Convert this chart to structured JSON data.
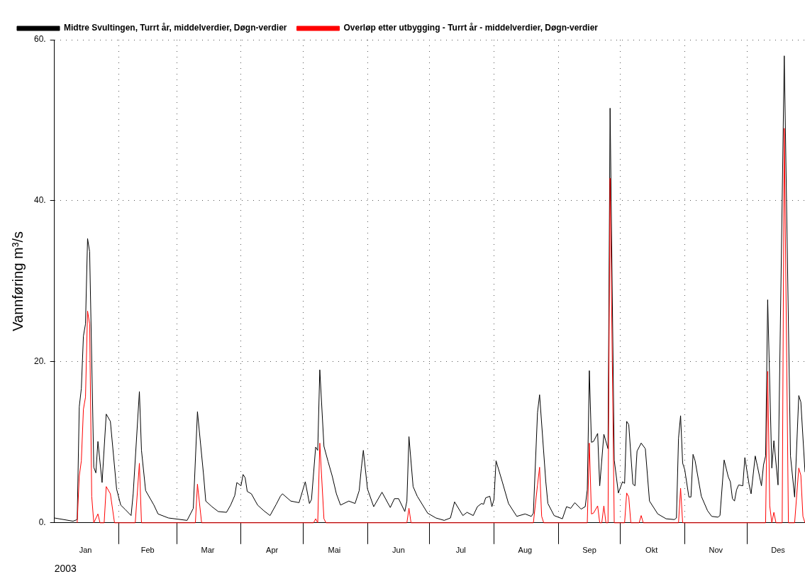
{
  "chart_data": {
    "type": "line",
    "ylabel": "Vannføring m³/s",
    "annotations": [
      "2003"
    ],
    "xlim": [
      "2003-01-01",
      "2003-12-29"
    ],
    "xticks": [
      {
        "value": "2003-02-01",
        "label": null
      },
      {
        "value": "2003-03-01",
        "label": null
      },
      {
        "value": "2003-04-01",
        "label": null
      },
      {
        "value": "2003-05-01",
        "label": null
      },
      {
        "value": "2003-06-01",
        "label": null
      },
      {
        "value": "2003-07-01",
        "label": null
      },
      {
        "value": "2003-08-01",
        "label": null
      },
      {
        "value": "2003-09-01",
        "label": null
      },
      {
        "value": "2003-10-01",
        "label": null
      },
      {
        "value": "2003-11-01",
        "label": null
      },
      {
        "value": "2003-12-01",
        "label": null
      },
      {
        "value": "2003-01-16",
        "label": "Jan"
      },
      {
        "value": "2003-02-15",
        "label": "Feb"
      },
      {
        "value": "2003-03-16",
        "label": "Mar"
      },
      {
        "value": "2003-04-16",
        "label": "Apr"
      },
      {
        "value": "2003-05-16",
        "label": "Mai"
      },
      {
        "value": "2003-06-16",
        "label": "Jun"
      },
      {
        "value": "2003-07-16",
        "label": "Jul"
      },
      {
        "value": "2003-08-16",
        "label": "Aug"
      },
      {
        "value": "2003-09-16",
        "label": "Sep"
      },
      {
        "value": "2003-10-16",
        "label": "Okt"
      },
      {
        "value": "2003-11-16",
        "label": "Nov"
      },
      {
        "value": "2003-12-16",
        "label": "Des"
      }
    ],
    "ylim": [
      0,
      60
    ],
    "yticks": [
      {
        "value": 0,
        "label": "0."
      },
      {
        "value": 20,
        "label": "20."
      },
      {
        "value": 40,
        "label": "40."
      },
      {
        "value": 60,
        "label": "60."
      }
    ],
    "grid": true,
    "legend": "top left",
    "series": [
      {
        "name": "Midtre Svultingen, Turrt år, middelverdier, Døgn-verdier",
        "color": "#000000",
        "x": [
          "2003-01-01",
          "2003-01-10",
          "2003-01-12",
          "2003-01-13",
          "2003-01-14",
          "2003-01-15",
          "2003-01-16",
          "2003-01-17",
          "2003-01-18",
          "2003-01-20",
          "2003-01-21",
          "2003-01-22",
          "2003-01-24",
          "2003-01-26",
          "2003-01-28",
          "2003-01-31",
          "2003-02-02",
          "2003-02-04",
          "2003-02-07",
          "2003-02-08",
          "2003-02-11",
          "2003-02-12",
          "2003-02-14",
          "2003-02-18",
          "2003-02-20",
          "2003-02-25",
          "2003-03-06",
          "2003-03-08",
          "2003-03-09",
          "2003-03-11",
          "2003-03-14",
          "2003-03-15",
          "2003-03-18",
          "2003-03-21",
          "2003-03-25",
          "2003-03-27",
          "2003-03-29",
          "2003-03-30",
          "2003-04-01",
          "2003-04-02",
          "2003-04-03",
          "2003-04-04",
          "2003-04-06",
          "2003-04-09",
          "2003-04-12",
          "2003-04-15",
          "2003-04-18",
          "2003-04-20",
          "2003-04-21",
          "2003-04-25",
          "2003-04-29",
          "2003-05-02",
          "2003-05-04",
          "2003-05-05",
          "2003-05-07",
          "2003-05-08",
          "2003-05-09",
          "2003-05-11",
          "2003-05-13",
          "2003-05-15",
          "2003-05-17",
          "2003-05-19",
          "2003-05-23",
          "2003-05-26",
          "2003-05-28",
          "2003-05-29",
          "2003-05-30",
          "2003-06-01",
          "2003-06-04",
          "2003-06-08",
          "2003-06-12",
          "2003-06-14",
          "2003-06-16",
          "2003-06-19",
          "2003-06-20",
          "2003-06-21",
          "2003-06-23",
          "2003-06-25",
          "2003-06-30",
          "2003-07-04",
          "2003-07-08",
          "2003-07-11",
          "2003-07-13",
          "2003-07-17",
          "2003-07-19",
          "2003-07-22",
          "2003-07-24",
          "2003-07-26",
          "2003-07-27",
          "2003-07-28",
          "2003-07-30",
          "2003-07-31",
          "2003-08-01",
          "2003-08-02",
          "2003-08-05",
          "2003-08-08",
          "2003-08-12",
          "2003-08-16",
          "2003-08-19",
          "2003-08-20",
          "2003-08-22",
          "2003-08-23",
          "2003-08-26",
          "2003-08-27",
          "2003-08-30",
          "2003-09-03",
          "2003-09-05",
          "2003-09-07",
          "2003-09-09",
          "2003-09-12",
          "2003-09-14",
          "2003-09-15",
          "2003-09-16",
          "2003-09-17",
          "2003-09-18",
          "2003-09-20",
          "2003-09-21",
          "2003-09-23",
          "2003-09-25",
          "2003-09-26",
          "2003-09-28",
          "2003-09-30",
          "2003-10-02",
          "2003-10-03",
          "2003-10-04",
          "2003-10-05",
          "2003-10-07",
          "2003-10-08",
          "2003-10-09",
          "2003-10-11",
          "2003-10-13",
          "2003-10-15",
          "2003-10-19",
          "2003-10-23",
          "2003-10-27",
          "2003-10-28",
          "2003-10-29",
          "2003-10-30",
          "2003-10-31",
          "2003-11-01",
          "2003-11-03",
          "2003-11-04",
          "2003-11-05",
          "2003-11-06",
          "2003-11-09",
          "2003-11-12",
          "2003-11-14",
          "2003-11-17",
          "2003-11-18",
          "2003-11-20",
          "2003-11-22",
          "2003-11-23",
          "2003-11-24",
          "2003-11-25",
          "2003-11-26",
          "2003-11-27",
          "2003-11-29",
          "2003-11-30",
          "2003-12-02",
          "2003-12-03",
          "2003-12-05",
          "2003-12-06",
          "2003-12-08",
          "2003-12-09",
          "2003-12-10",
          "2003-12-11",
          "2003-12-13",
          "2003-12-14",
          "2003-12-16",
          "2003-12-19",
          "2003-12-22",
          "2003-12-24",
          "2003-12-26",
          "2003-12-27",
          "2003-12-29"
        ],
        "values": [
          0.6,
          0.2,
          0.4,
          14.4,
          16.7,
          23.2,
          24.7,
          35.3,
          33.7,
          6.9,
          6.2,
          10.1,
          5.0,
          13.5,
          12.6,
          4.2,
          2.2,
          1.7,
          0.9,
          3.6,
          16.3,
          9.0,
          4.0,
          2.2,
          1.1,
          0.6,
          0.3,
          1.3,
          1.8,
          13.8,
          5.8,
          2.7,
          2.0,
          1.4,
          1.3,
          2.2,
          3.4,
          5.0,
          4.6,
          6.0,
          5.6,
          3.9,
          3.6,
          2.2,
          1.5,
          0.9,
          2.3,
          3.3,
          3.6,
          2.7,
          2.5,
          5.1,
          2.4,
          2.9,
          9.4,
          9.0,
          19.0,
          9.5,
          7.6,
          5.8,
          3.6,
          2.2,
          2.7,
          2.4,
          4.0,
          6.7,
          9.0,
          4.2,
          2.0,
          3.8,
          1.9,
          3.0,
          3.0,
          1.4,
          2.7,
          10.7,
          4.5,
          3.3,
          1.2,
          0.6,
          0.3,
          0.6,
          2.6,
          0.9,
          1.3,
          0.9,
          2.0,
          2.4,
          2.3,
          3.1,
          3.3,
          2.0,
          2.9,
          7.7,
          5.1,
          2.4,
          0.8,
          1.1,
          0.8,
          1.2,
          13.7,
          15.9,
          5.1,
          2.4,
          0.9,
          0.5,
          2.0,
          1.8,
          2.5,
          1.7,
          2.0,
          4.1,
          18.9,
          10.0,
          10.1,
          11.1,
          4.6,
          11.0,
          9.2,
          51.5,
          7.8,
          3.7,
          5.1,
          4.9,
          12.6,
          12.2,
          4.8,
          4.6,
          8.9,
          9.9,
          9.2,
          2.7,
          1.1,
          0.5,
          0.4,
          0.6,
          10.5,
          13.3,
          7.4,
          6.6,
          3.2,
          3.2,
          8.5,
          7.7,
          3.3,
          1.5,
          0.8,
          0.7,
          0.9,
          7.8,
          5.7,
          5.1,
          3.0,
          2.7,
          4.1,
          4.7,
          4.6,
          8.1,
          4.8,
          3.6,
          8.3,
          7.1,
          4.6,
          7.2,
          8.3,
          27.7,
          6.8,
          10.2,
          4.7,
          58.0,
          8.3,
          3.2,
          15.8,
          15.0,
          6.3
        ]
      },
      {
        "name": "Overløp etter utbygging - Turrt år - middelverdier, Døgn-verdier",
        "color": "#ff0000",
        "x": [
          "2003-01-12",
          "2003-01-13",
          "2003-01-14",
          "2003-01-15",
          "2003-01-16",
          "2003-01-17",
          "2003-01-18",
          "2003-01-19",
          "2003-01-20",
          "2003-01-22",
          "2003-01-23",
          "2003-01-25",
          "2003-01-26",
          "2003-01-28",
          "2003-01-30",
          "2003-02-09",
          "2003-02-11",
          "2003-02-12",
          "2003-03-10",
          "2003-03-11",
          "2003-03-13",
          "2003-05-06",
          "2003-05-07",
          "2003-05-08",
          "2003-05-09",
          "2003-05-11",
          "2003-05-12",
          "2003-06-20",
          "2003-06-21",
          "2003-06-22",
          "2003-08-20",
          "2003-08-22",
          "2003-08-23",
          "2003-08-24",
          "2003-08-25",
          "2003-09-15",
          "2003-09-16",
          "2003-09-17",
          "2003-09-18",
          "2003-09-20",
          "2003-09-21",
          "2003-09-22",
          "2003-09-23",
          "2003-09-24",
          "2003-09-25",
          "2003-09-26",
          "2003-09-28",
          "2003-10-03",
          "2003-10-04",
          "2003-10-05",
          "2003-10-06",
          "2003-10-10",
          "2003-10-11",
          "2003-10-12",
          "2003-10-29",
          "2003-10-30",
          "2003-10-31",
          "2003-12-10",
          "2003-12-11",
          "2003-12-12",
          "2003-12-13",
          "2003-12-14",
          "2003-12-15",
          "2003-12-18",
          "2003-12-19",
          "2003-12-21",
          "2003-12-24",
          "2003-12-26",
          "2003-12-27",
          "2003-12-28",
          "2003-12-29"
        ],
        "values": [
          0,
          5.8,
          7.7,
          14.1,
          15.6,
          26.3,
          24.7,
          3.3,
          0,
          1.1,
          0,
          0,
          4.5,
          3.6,
          0,
          0,
          7.4,
          0,
          0,
          4.8,
          0,
          0,
          0.5,
          0,
          9.9,
          0.5,
          0,
          0,
          1.8,
          0,
          0,
          4.7,
          6.9,
          0.8,
          0,
          0,
          9.9,
          1.1,
          1.2,
          2.1,
          0,
          0,
          2.1,
          0,
          0,
          42.8,
          0,
          0,
          3.7,
          3.2,
          0,
          0,
          0.9,
          0,
          0,
          4.3,
          0,
          0,
          18.8,
          2.1,
          0,
          1.3,
          0,
          0,
          49.0,
          0,
          0,
          6.8,
          5.9,
          0.8,
          0
        ]
      }
    ]
  }
}
